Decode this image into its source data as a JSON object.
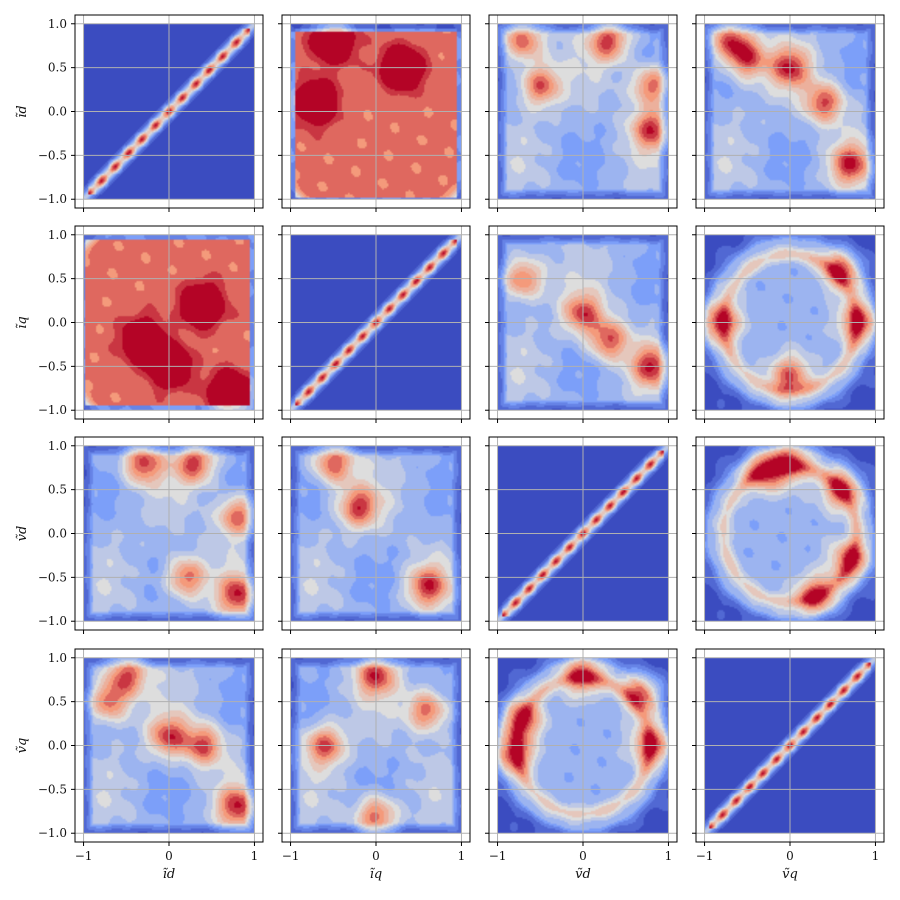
{
  "chart_data": {
    "type": "heatmap",
    "layout": "4x4 pair-density matrix",
    "colormap": "coolwarm",
    "variables": [
      {
        "key": "id",
        "label": "ĩd"
      },
      {
        "key": "iq",
        "label": "ĩq"
      },
      {
        "key": "vd",
        "label": "ṽd"
      },
      {
        "key": "vq",
        "label": "ṽq"
      }
    ],
    "xlim": [
      -1.1,
      1.1
    ],
    "ylim": [
      -1.1,
      1.1
    ],
    "x_ticks": [
      "−1",
      "0",
      "1"
    ],
    "x_tick_values": [
      -1,
      0,
      1
    ],
    "y_ticks": [
      "1.0",
      "0.5",
      "0.0",
      "−0.5",
      "−1.0"
    ],
    "y_tick_values": [
      1.0,
      0.5,
      0.0,
      -0.5,
      -1.0
    ],
    "grid": true,
    "data_region": [
      -1.0,
      1.0
    ],
    "panels": [
      {
        "row": 0,
        "col": 0,
        "shape": "diagonal"
      },
      {
        "row": 0,
        "col": 1,
        "shape": "bowl",
        "hot": [
          [
            -0.5,
            0.8
          ],
          [
            0.3,
            0.5
          ],
          [
            -0.7,
            0.1
          ]
        ]
      },
      {
        "row": 0,
        "col": 2,
        "shape": "blobs",
        "hot": [
          [
            -0.7,
            0.8
          ],
          [
            0.8,
            0.3
          ],
          [
            0.8,
            -0.2
          ],
          [
            0.3,
            0.8
          ],
          [
            -0.5,
            0.3
          ]
        ]
      },
      {
        "row": 0,
        "col": 3,
        "shape": "blobs",
        "hot": [
          [
            0.0,
            0.5
          ],
          [
            0.4,
            0.1
          ],
          [
            0.7,
            -0.6
          ],
          [
            -0.7,
            0.8
          ],
          [
            -0.5,
            0.6
          ]
        ]
      },
      {
        "row": 1,
        "col": 0,
        "shape": "half-disc",
        "hot": [
          [
            -0.3,
            -0.2
          ],
          [
            0.0,
            -0.5
          ],
          [
            0.4,
            0.2
          ],
          [
            0.7,
            -0.8
          ]
        ]
      },
      {
        "row": 1,
        "col": 1,
        "shape": "diagonal"
      },
      {
        "row": 1,
        "col": 2,
        "shape": "blobs",
        "hot": [
          [
            -0.7,
            0.5
          ],
          [
            0.8,
            -0.5
          ],
          [
            0.0,
            0.1
          ],
          [
            0.3,
            -0.2
          ]
        ]
      },
      {
        "row": 1,
        "col": 3,
        "shape": "ring",
        "hot": [
          [
            0.8,
            0.0
          ],
          [
            0.6,
            0.6
          ],
          [
            -0.8,
            0.0
          ],
          [
            0.0,
            -0.6
          ]
        ]
      },
      {
        "row": 2,
        "col": 0,
        "shape": "blobs",
        "hot": [
          [
            -0.3,
            0.8
          ],
          [
            0.3,
            0.8
          ],
          [
            0.8,
            -0.7
          ],
          [
            0.2,
            -0.5
          ],
          [
            0.8,
            0.2
          ]
        ]
      },
      {
        "row": 2,
        "col": 1,
        "shape": "blobs",
        "hot": [
          [
            -0.5,
            0.8
          ],
          [
            0.6,
            -0.6
          ],
          [
            -0.2,
            0.3
          ]
        ]
      },
      {
        "row": 2,
        "col": 2,
        "shape": "diagonal"
      },
      {
        "row": 2,
        "col": 3,
        "shape": "ring",
        "hot": [
          [
            0.0,
            0.8
          ],
          [
            0.6,
            0.5
          ],
          [
            0.7,
            -0.3
          ],
          [
            0.3,
            -0.7
          ],
          [
            -0.3,
            0.7
          ]
        ]
      },
      {
        "row": 3,
        "col": 0,
        "shape": "blobs",
        "hot": [
          [
            -0.5,
            0.8
          ],
          [
            0.4,
            0.0
          ],
          [
            0.0,
            0.1
          ],
          [
            0.8,
            -0.7
          ],
          [
            -0.7,
            0.5
          ]
        ]
      },
      {
        "row": 3,
        "col": 1,
        "shape": "blobs",
        "hot": [
          [
            0.0,
            0.8
          ],
          [
            -0.6,
            0.0
          ],
          [
            0.0,
            -0.8
          ],
          [
            0.6,
            0.4
          ]
        ]
      },
      {
        "row": 3,
        "col": 2,
        "shape": "ring",
        "hot": [
          [
            0.0,
            0.8
          ],
          [
            0.7,
            0.6
          ],
          [
            0.8,
            0.0
          ],
          [
            -0.7,
            0.3
          ],
          [
            -0.8,
            -0.1
          ]
        ]
      },
      {
        "row": 3,
        "col": 3,
        "shape": "diagonal"
      }
    ]
  }
}
